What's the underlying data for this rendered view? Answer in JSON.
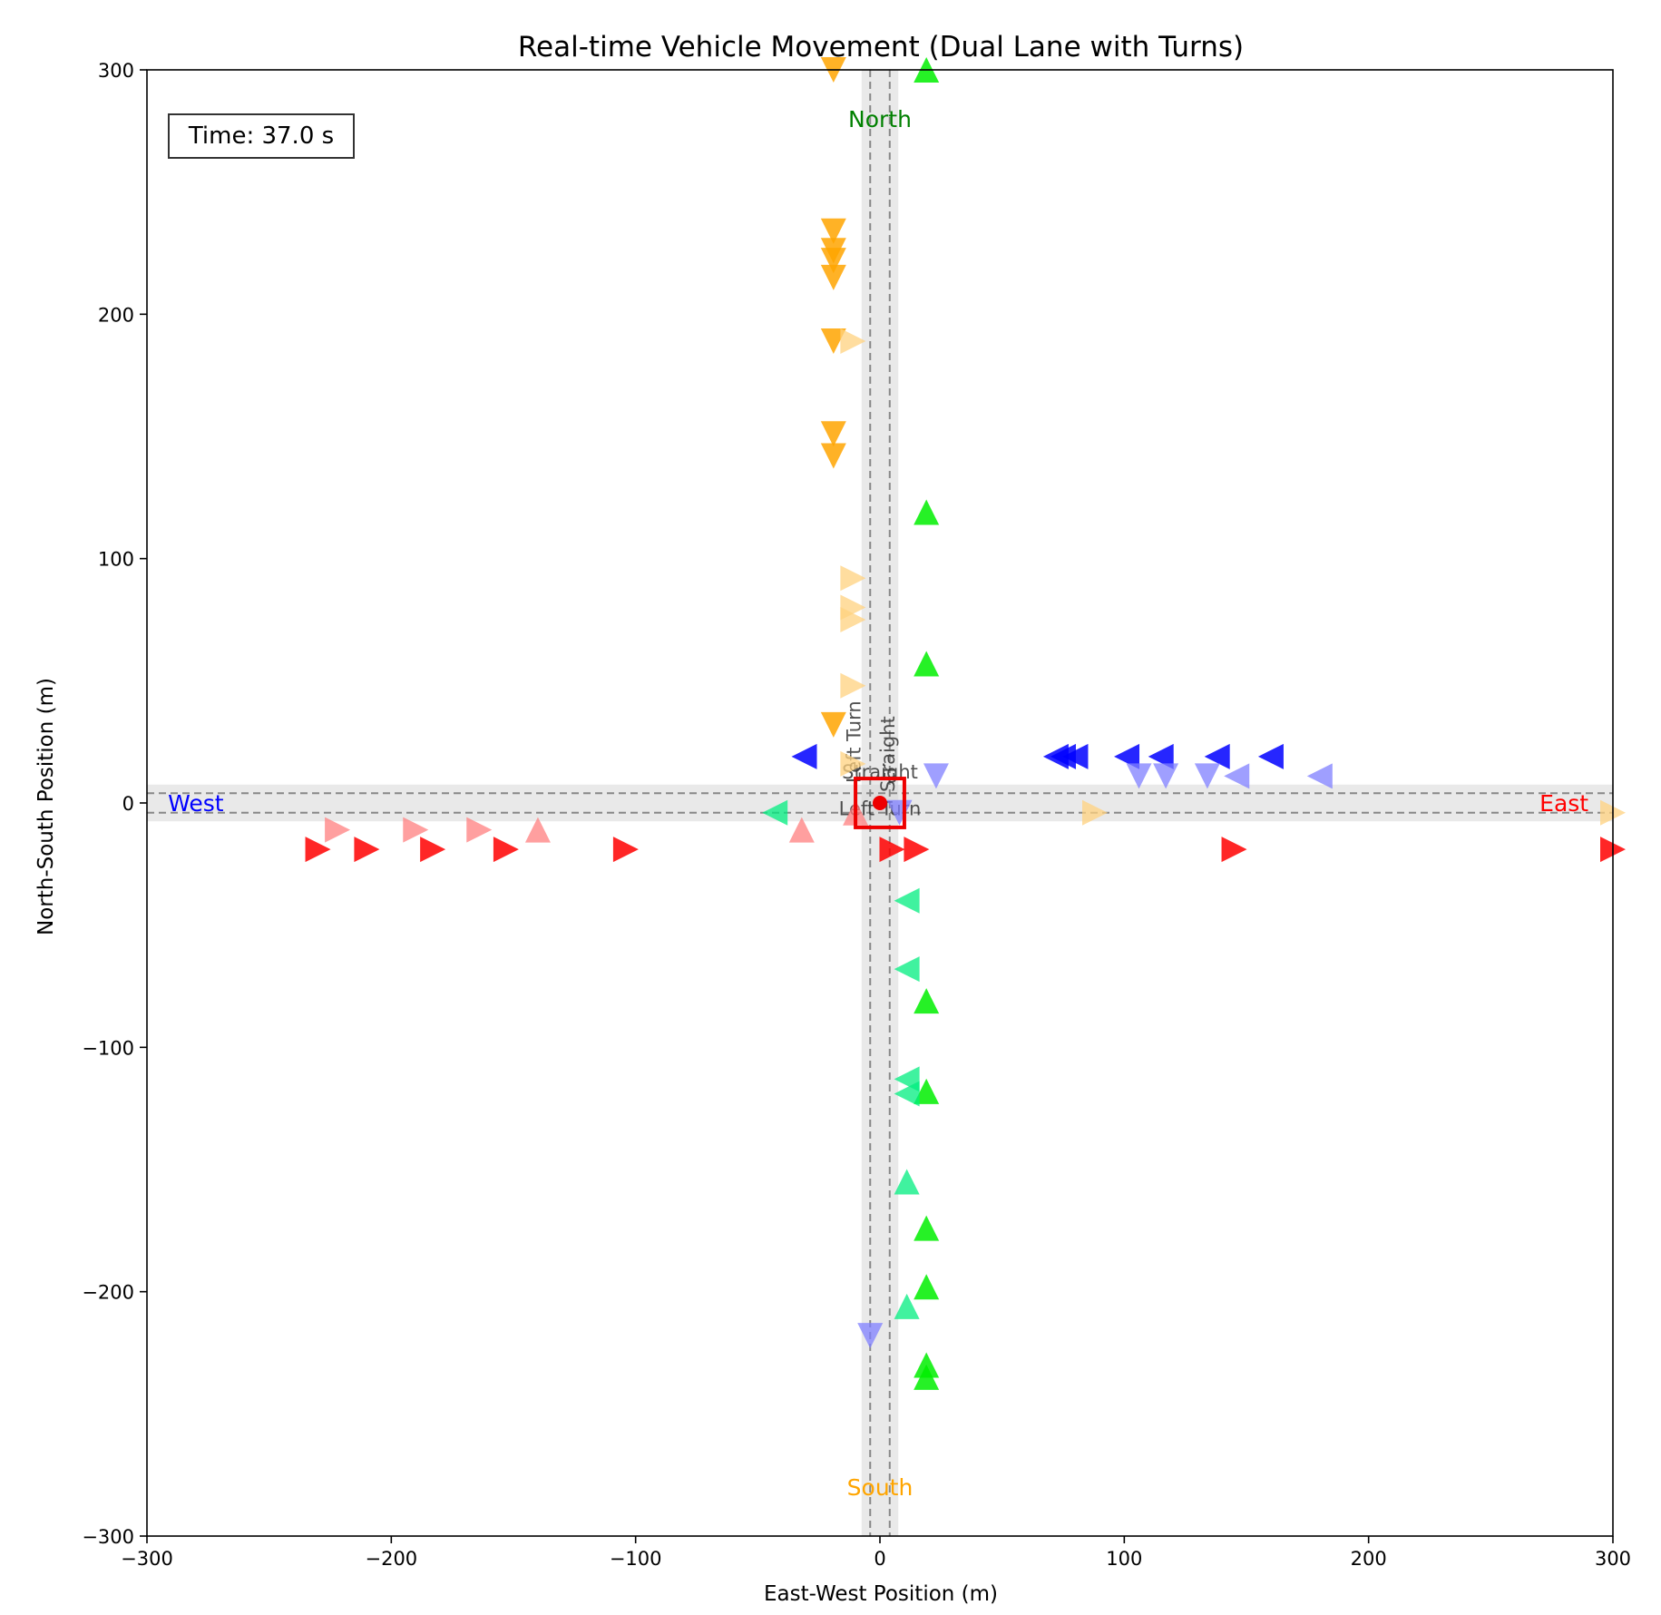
{
  "chart_data": {
    "type": "scatter",
    "title": "Real-time Vehicle Movement (Dual Lane with Turns)",
    "xlabel": "East-West Position (m)",
    "ylabel": "North-South Position (m)",
    "xlim": [
      -300,
      300
    ],
    "ylim": [
      -300,
      300
    ],
    "xticks": [
      -300,
      -200,
      -100,
      0,
      100,
      200,
      300
    ],
    "yticks": [
      -300,
      -200,
      -100,
      0,
      100,
      200,
      300
    ],
    "xtick_labels": [
      "−300",
      "−200",
      "−100",
      "0",
      "100",
      "200",
      "300"
    ],
    "ytick_labels": [
      "−300",
      "−200",
      "−100",
      "0",
      "100",
      "200",
      "300"
    ],
    "grid": false,
    "time_label": "Time: 37.0 s",
    "direction_labels": [
      {
        "text": "North",
        "x": 0,
        "y": 280,
        "color": "#008000"
      },
      {
        "text": "South",
        "x": 0,
        "y": -280,
        "color": "#ffa500"
      },
      {
        "text": "East",
        "x": 280,
        "y": 0,
        "color": "#ff0000"
      },
      {
        "text": "West",
        "x": -280,
        "y": 0,
        "color": "#0000ff"
      }
    ],
    "lane_labels": [
      {
        "text": "Straight",
        "x": 0,
        "y": 10,
        "rotate": 0
      },
      {
        "text": "Left Turn",
        "x": 0,
        "y": -5,
        "rotate": 0
      },
      {
        "text": "Left Turn",
        "x": -8,
        "y": 25,
        "rotate": -90
      },
      {
        "text": "Straight",
        "x": 6,
        "y": 20,
        "rotate": -90
      }
    ],
    "series": [
      {
        "color": "#ff0000",
        "alpha": 0.85,
        "marker": "right",
        "points": [
          [
            -230,
            -19
          ],
          [
            -210,
            -19
          ],
          [
            -183,
            -19
          ],
          [
            -153,
            -19
          ],
          [
            -104,
            -19
          ],
          [
            5,
            -19
          ],
          [
            15,
            -19
          ],
          [
            145,
            -19
          ],
          [
            300,
            -19
          ]
        ]
      },
      {
        "color": "#ff7f7f",
        "alpha": 0.75,
        "marker": "right",
        "points": [
          [
            -222,
            -11
          ],
          [
            -190,
            -11
          ],
          [
            -164,
            -11
          ]
        ]
      },
      {
        "color": "#ff7f7f",
        "alpha": 0.75,
        "marker": "up",
        "points": [
          [
            -140,
            -11
          ],
          [
            -32,
            -11
          ],
          [
            -10,
            -4
          ]
        ]
      },
      {
        "color": "#0000ff",
        "alpha": 0.85,
        "marker": "left",
        "points": [
          [
            -31,
            19
          ],
          [
            72,
            19
          ],
          [
            75,
            19
          ],
          [
            80,
            19
          ],
          [
            101,
            19
          ],
          [
            115,
            19
          ],
          [
            138,
            19
          ],
          [
            160,
            19
          ]
        ]
      },
      {
        "color": "#7f7fff",
        "alpha": 0.75,
        "marker": "left",
        "points": [
          [
            146,
            11
          ],
          [
            180,
            11
          ]
        ]
      },
      {
        "color": "#7f7fff",
        "alpha": 0.75,
        "marker": "down",
        "points": [
          [
            23,
            11
          ],
          [
            106,
            11
          ],
          [
            117,
            11
          ],
          [
            134,
            11
          ],
          [
            8,
            -4
          ],
          [
            -4,
            -218
          ]
        ]
      },
      {
        "color": "#ffa500",
        "alpha": 0.85,
        "marker": "down",
        "points": [
          [
            -19,
            300
          ],
          [
            -19,
            234
          ],
          [
            -19,
            226
          ],
          [
            -19,
            222
          ],
          [
            -19,
            215
          ],
          [
            -19,
            189
          ],
          [
            -19,
            151
          ],
          [
            -19,
            142
          ],
          [
            -19,
            32
          ]
        ]
      },
      {
        "color": "#ffd27f",
        "alpha": 0.75,
        "marker": "right",
        "points": [
          [
            -11,
            189
          ],
          [
            -11,
            92
          ],
          [
            -11,
            80
          ],
          [
            -11,
            75
          ],
          [
            -11,
            48
          ],
          [
            -11,
            16
          ],
          [
            88,
            -4
          ],
          [
            300,
            -4
          ]
        ]
      },
      {
        "color": "#00ee00",
        "alpha": 0.85,
        "marker": "up",
        "points": [
          [
            19,
            300
          ],
          [
            19,
            119
          ],
          [
            19,
            57
          ],
          [
            19,
            -81
          ],
          [
            19,
            -118
          ],
          [
            19,
            -174
          ],
          [
            19,
            -198
          ],
          [
            19,
            -230
          ],
          [
            19,
            -235
          ]
        ]
      },
      {
        "color": "#00ee7f",
        "alpha": 0.75,
        "marker": "left",
        "points": [
          [
            -43,
            -4
          ],
          [
            11,
            -40
          ],
          [
            11,
            -68
          ],
          [
            11,
            -113
          ],
          [
            11,
            -119
          ]
        ]
      },
      {
        "color": "#00ee7f",
        "alpha": 0.75,
        "marker": "up",
        "points": [
          [
            11,
            -155
          ],
          [
            11,
            -206
          ]
        ]
      }
    ],
    "intersection": {
      "box_x": [
        -10,
        10
      ],
      "box_y": [
        -10,
        10
      ],
      "center": [
        0,
        0
      ],
      "color": "#ee0000"
    },
    "roads": {
      "half_width": 7.5,
      "center_dash_offset": 4
    }
  }
}
